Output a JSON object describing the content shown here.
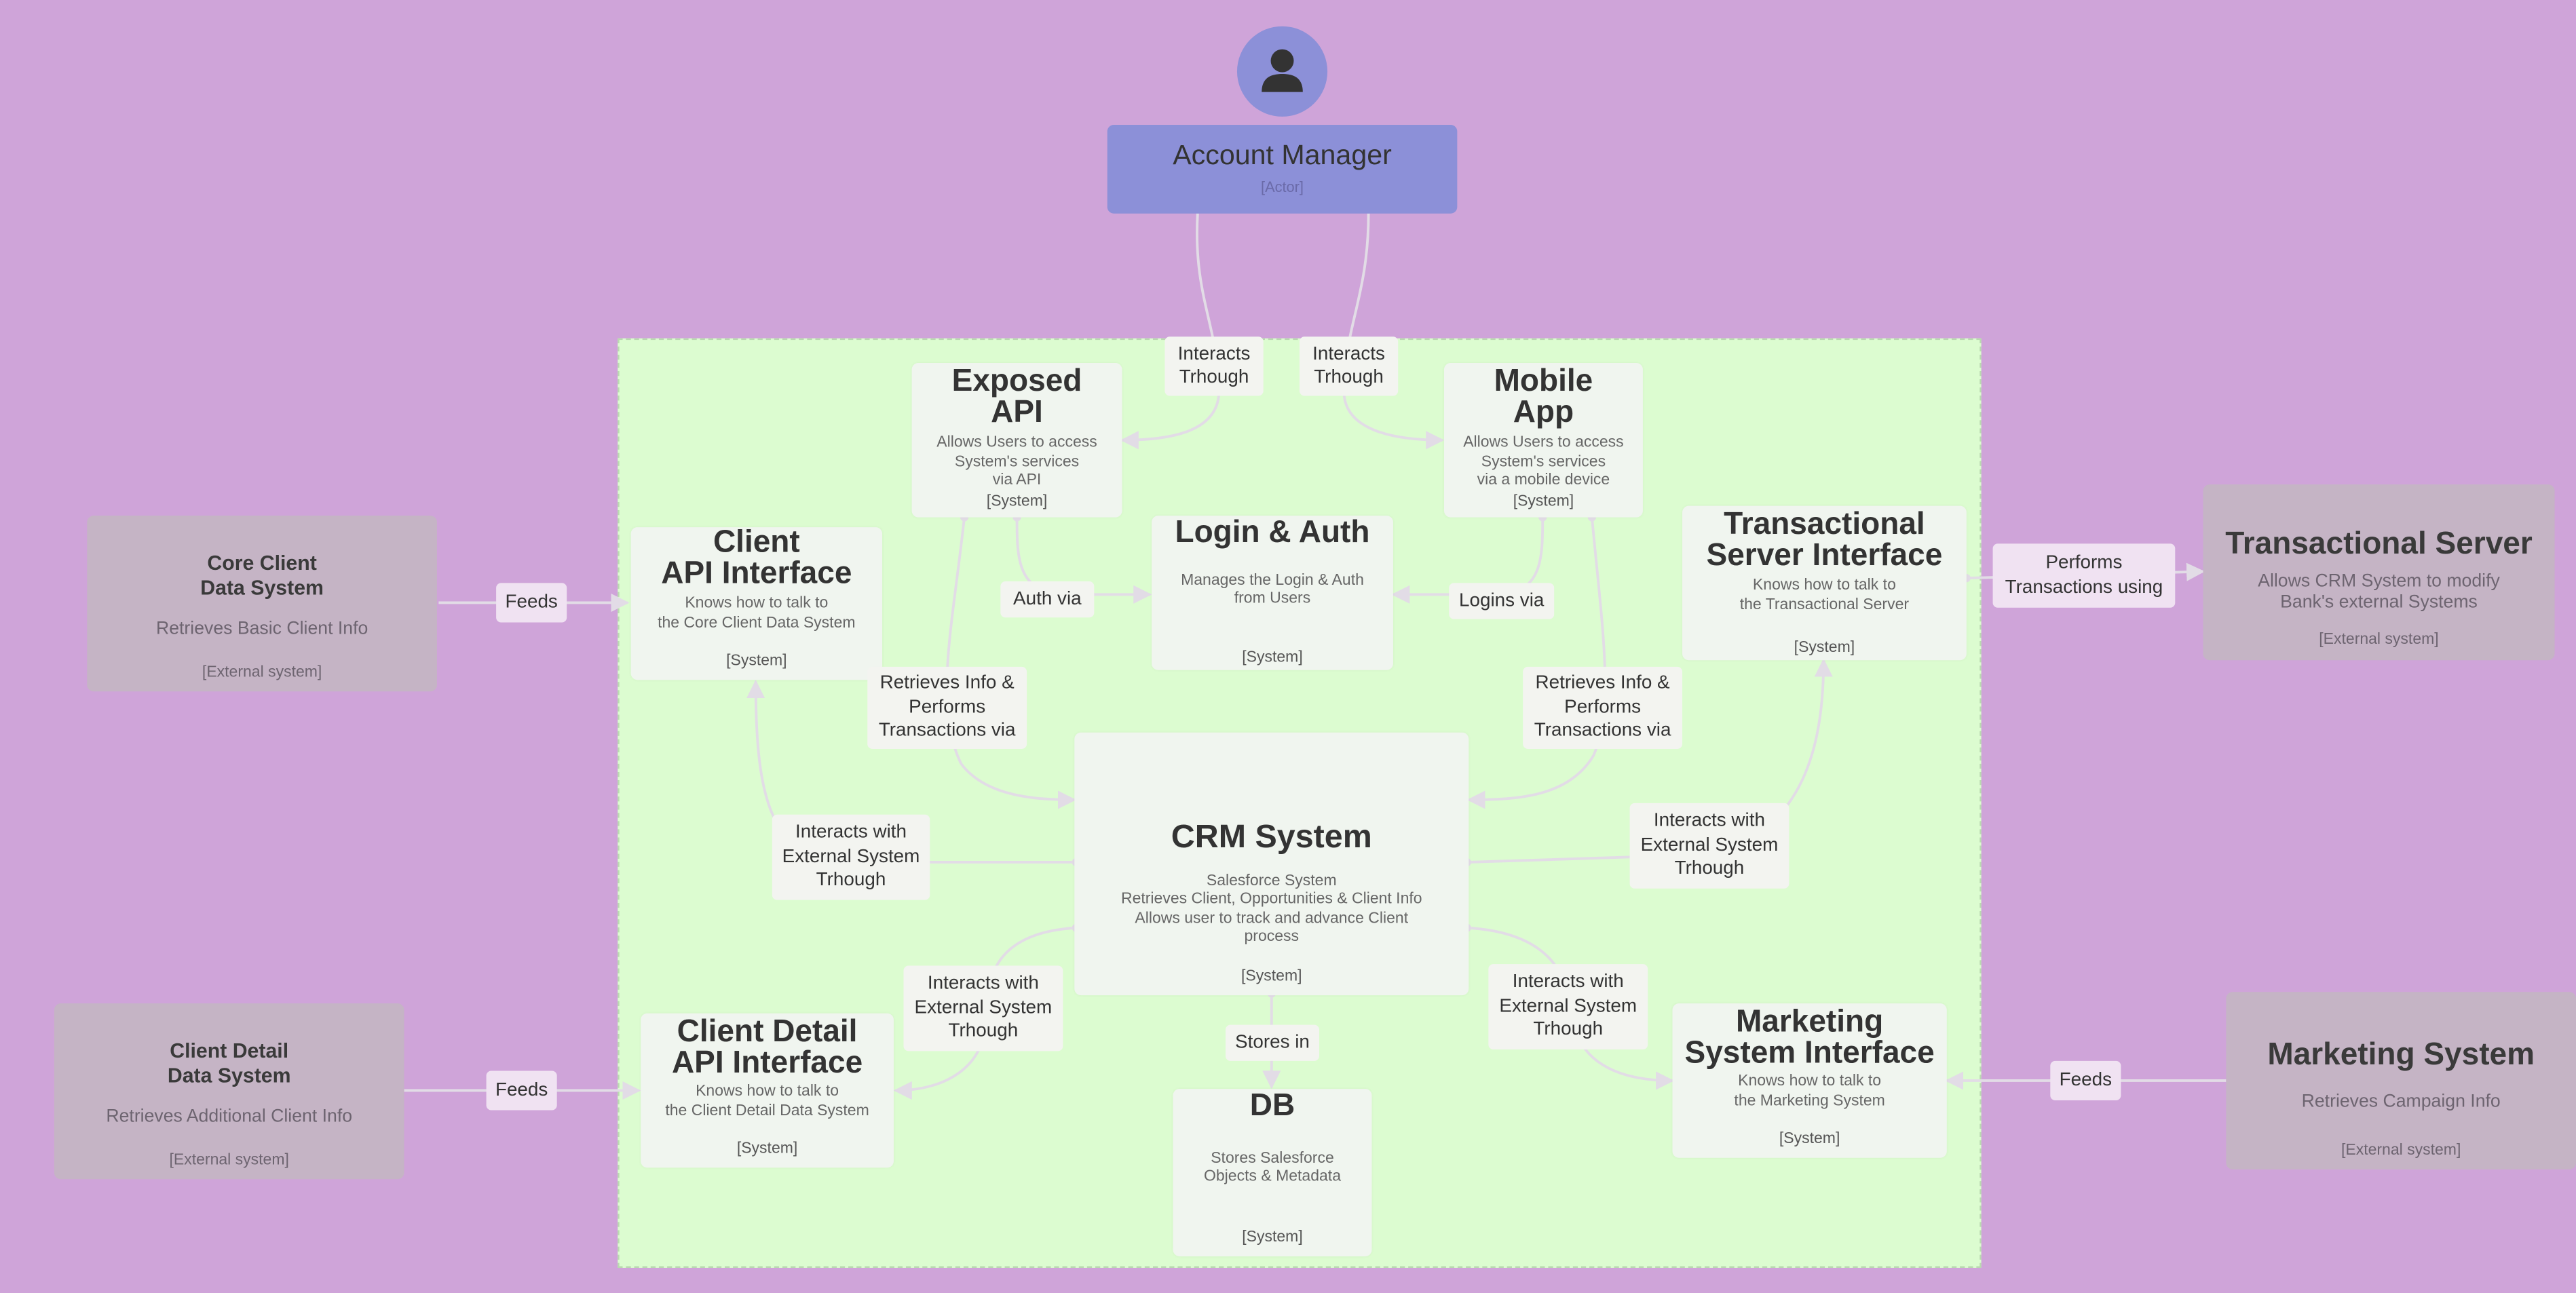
{
  "actor": {
    "name": "Account Manager",
    "tag": "[Actor]",
    "icon": "person-icon"
  },
  "systems": {
    "exposed_api": {
      "title": "Exposed\nAPI",
      "desc": "Allows Users to access\nSystem's services\nvia API",
      "tag": "[System]"
    },
    "mobile_app": {
      "title": "Mobile\nApp",
      "desc": "Allows Users to access\nSystem's services\nvia a mobile device",
      "tag": "[System]"
    },
    "client_api": {
      "title": "Client\nAPI Interface",
      "desc": "Knows how to talk to\nthe Core Client Data System",
      "tag": "[System]"
    },
    "login_auth": {
      "title": "Login & Auth",
      "desc": "Manages the Login & Auth\nfrom Users",
      "tag": "[System]"
    },
    "transactional_interface": {
      "title": "Transactional\nServer Interface",
      "desc": "Knows how to talk to\nthe Transactional Server",
      "tag": "[System]"
    },
    "crm": {
      "title": "CRM System",
      "desc": "Salesforce  System\nRetrieves Client, Opportunities & Client Info\nAllows user to track and advance Client\nprocess",
      "tag": "[System]"
    },
    "client_detail_api": {
      "title": "Client Detail\nAPI Interface",
      "desc": "Knows how to talk to\nthe Client Detail Data System",
      "tag": "[System]"
    },
    "db": {
      "title": "DB",
      "desc": "Stores Salesforce\nObjects & Metadata",
      "tag": "[System]"
    },
    "marketing_interface": {
      "title": "Marketing\nSystem Interface",
      "desc": "Knows how to talk to\nthe Marketing System",
      "tag": "[System]"
    }
  },
  "external": {
    "core_client": {
      "title": "Core Client\nData System",
      "desc": "Retrieves Basic Client Info",
      "tag": "[External system]"
    },
    "client_detail": {
      "title": "Client Detail\nData System",
      "desc": "Retrieves Additional Client Info",
      "tag": "[External system]"
    },
    "transactional_server": {
      "title": "Transactional Server",
      "desc": "Allows CRM System to modify\nBank's external Systems",
      "tag": "[External system]"
    },
    "marketing_system": {
      "title": "Marketing System",
      "desc": "Retrieves Campaign Info",
      "tag": "[External system]"
    }
  },
  "relations": {
    "interacts_left": "Interacts\nTrhough",
    "interacts_right": "Interacts\nTrhough",
    "auth_via": "Auth via",
    "logins_via": "Logins via",
    "retrieves_left": "Retrieves Info &\nPerforms\nTransactions via",
    "retrieves_right": "Retrieves Info &\nPerforms\nTransactions via",
    "ext_left": "Interacts with\nExternal System\nTrhough",
    "ext_right": "Interacts with\nExternal System\nTrhough",
    "ext_bottom_left": "Interacts with\nExternal System\nTrhough",
    "ext_bottom_right": "Interacts with\nExternal System\nTrhough",
    "stores_in": "Stores in",
    "feeds_core": "Feeds",
    "feeds_detail": "Feeds",
    "feeds_marketing": "Feeds",
    "performs": "Performs\nTransactions using"
  },
  "colors": {
    "background": "#cfa4d9",
    "boundary": "#dcfcd0",
    "system": "#f0f5ef",
    "external": "#c5b4c5",
    "actor": "#8c90d8",
    "edge": "#e2dce6"
  }
}
